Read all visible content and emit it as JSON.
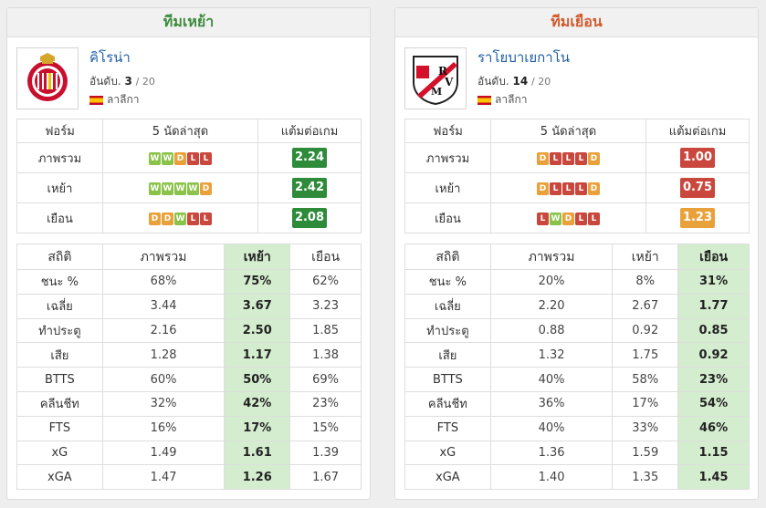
{
  "colors": {
    "W": "#8bc34a",
    "D": "#e9a23b",
    "L": "#c9473c",
    "ppg_high": "#2e8b3a",
    "ppg_low": "#c9473c",
    "ppg_mid": "#e9a23b"
  },
  "panels": [
    {
      "side": "left",
      "header": "ทีมเหย้า",
      "team_name": "คิโรน่า",
      "rank_label": "อันดับ.",
      "rank": "3",
      "rank_total": "/ 20",
      "league": "ลาลีกา",
      "logo_icon": "girona-crest-icon",
      "form_headers": [
        "ฟอร์ม",
        "5 นัดล่าสุด",
        "แต้มต่อเกม"
      ],
      "form_rows": [
        {
          "label": "ภาพรวม",
          "results": [
            "W",
            "W",
            "D",
            "L",
            "L"
          ],
          "ppg": "2.24",
          "ppg_color": "#2e8b3a"
        },
        {
          "label": "เหย้า",
          "results": [
            "W",
            "W",
            "W",
            "W",
            "D"
          ],
          "ppg": "2.42",
          "ppg_color": "#2e8b3a"
        },
        {
          "label": "เยือน",
          "results": [
            "D",
            "D",
            "W",
            "L",
            "L"
          ],
          "ppg": "2.08",
          "ppg_color": "#2e8b3a"
        }
      ],
      "stats_headers": [
        "สถิติ",
        "ภาพรวม",
        "เหย้า",
        "เยือน"
      ],
      "highlight_col": 2,
      "stats_rows": [
        {
          "label": "ชนะ %",
          "values": [
            "68%",
            "75%",
            "62%"
          ]
        },
        {
          "label": "เฉลี่ย",
          "values": [
            "3.44",
            "3.67",
            "3.23"
          ]
        },
        {
          "label": "ทำประตู",
          "values": [
            "2.16",
            "2.50",
            "1.85"
          ]
        },
        {
          "label": "เสีย",
          "values": [
            "1.28",
            "1.17",
            "1.38"
          ]
        },
        {
          "label": "BTTS",
          "values": [
            "60%",
            "50%",
            "69%"
          ]
        },
        {
          "label": "คลีนชีท",
          "values": [
            "32%",
            "42%",
            "23%"
          ]
        },
        {
          "label": "FTS",
          "values": [
            "16%",
            "17%",
            "15%"
          ]
        },
        {
          "label": "xG",
          "values": [
            "1.49",
            "1.61",
            "1.39"
          ]
        },
        {
          "label": "xGA",
          "values": [
            "1.47",
            "1.26",
            "1.67"
          ]
        }
      ]
    },
    {
      "side": "right",
      "header": "ทีมเยือน",
      "team_name": "ราโยบาเยกาโน",
      "rank_label": "อันดับ.",
      "rank": "14",
      "rank_total": "/ 20",
      "league": "ลาลีกา",
      "logo_icon": "rayo-vallecano-crest-icon",
      "form_headers": [
        "ฟอร์ม",
        "5 นัดล่าสุด",
        "แต้มต่อเกม"
      ],
      "form_rows": [
        {
          "label": "ภาพรวม",
          "results": [
            "D",
            "L",
            "L",
            "L",
            "D"
          ],
          "ppg": "1.00",
          "ppg_color": "#c9473c"
        },
        {
          "label": "เหย้า",
          "results": [
            "D",
            "L",
            "L",
            "L",
            "D"
          ],
          "ppg": "0.75",
          "ppg_color": "#c9473c"
        },
        {
          "label": "เยือน",
          "results": [
            "L",
            "W",
            "D",
            "L",
            "L"
          ],
          "ppg": "1.23",
          "ppg_color": "#e9a23b"
        }
      ],
      "stats_headers": [
        "สถิติ",
        "ภาพรวม",
        "เหย้า",
        "เยือน"
      ],
      "highlight_col": 3,
      "stats_rows": [
        {
          "label": "ชนะ %",
          "values": [
            "20%",
            "8%",
            "31%"
          ]
        },
        {
          "label": "เฉลี่ย",
          "values": [
            "2.20",
            "2.67",
            "1.77"
          ]
        },
        {
          "label": "ทำประตู",
          "values": [
            "0.88",
            "0.92",
            "0.85"
          ]
        },
        {
          "label": "เสีย",
          "values": [
            "1.32",
            "1.75",
            "0.92"
          ]
        },
        {
          "label": "BTTS",
          "values": [
            "40%",
            "58%",
            "23%"
          ]
        },
        {
          "label": "คลีนชีท",
          "values": [
            "36%",
            "17%",
            "54%"
          ]
        },
        {
          "label": "FTS",
          "values": [
            "40%",
            "33%",
            "46%"
          ]
        },
        {
          "label": "xG",
          "values": [
            "1.36",
            "1.59",
            "1.15"
          ]
        },
        {
          "label": "xGA",
          "values": [
            "1.40",
            "1.35",
            "1.45"
          ]
        }
      ]
    }
  ]
}
